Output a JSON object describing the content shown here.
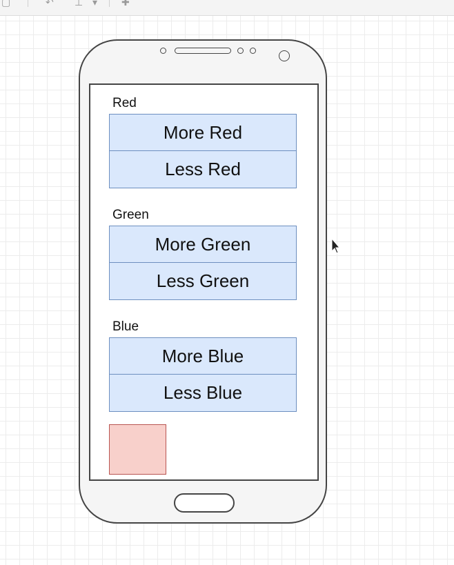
{
  "groups": [
    {
      "label": "Red",
      "more_label": "More Red",
      "less_label": "Less Red"
    },
    {
      "label": "Green",
      "more_label": "More Green",
      "less_label": "Less Green"
    },
    {
      "label": "Blue",
      "more_label": "More Blue",
      "less_label": "Less Blue"
    }
  ],
  "colors": {
    "button_fill": "#dae8fc",
    "button_border": "#6c8ebf",
    "swatch_fill": "#f8d0cb",
    "swatch_border": "#b85450",
    "phone_outline": "#444444"
  },
  "icons": [
    "phone-frame-icon",
    "mouse-pointer-icon"
  ]
}
